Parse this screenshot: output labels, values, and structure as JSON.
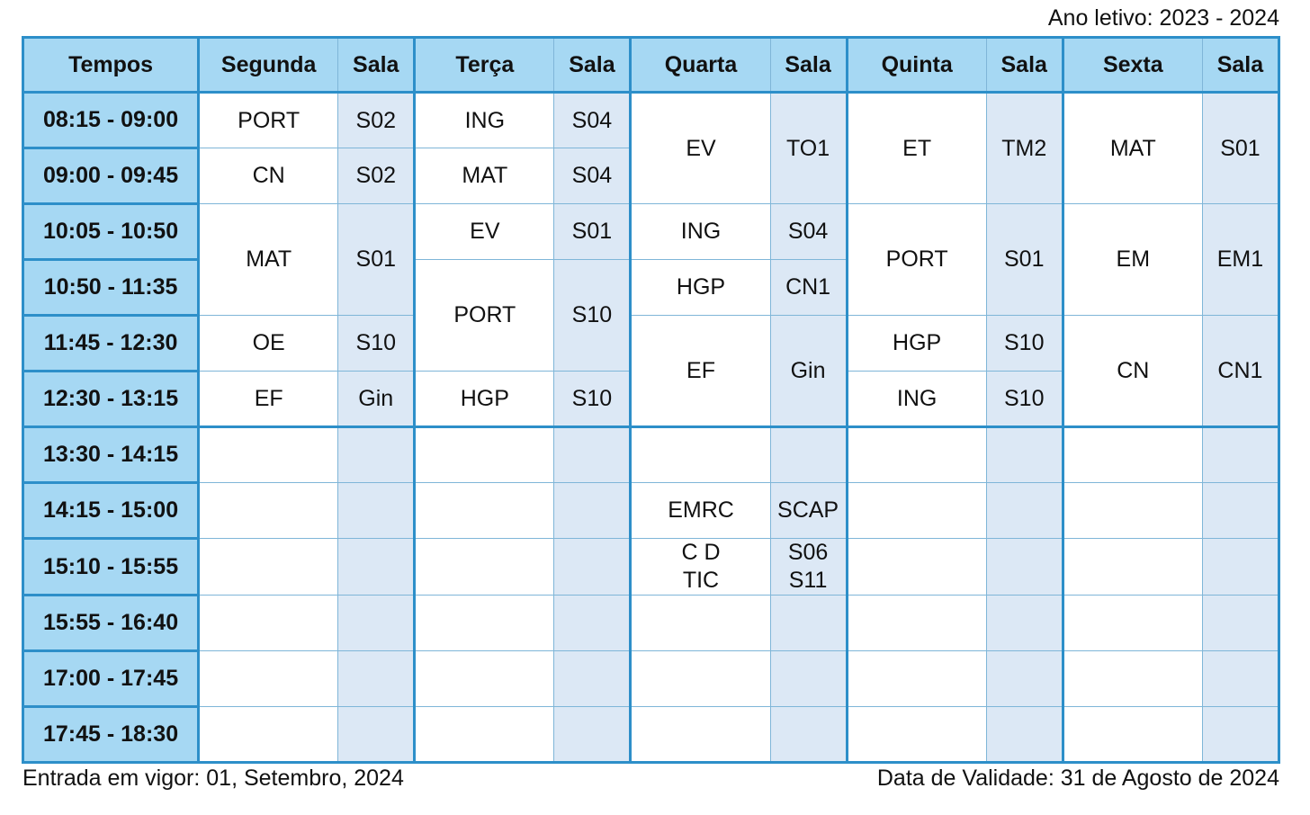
{
  "header_note": "Ano letivo: 2023 - 2024",
  "footer": {
    "left": "Entrada em vigor: 01, Setembro, 2024",
    "right": "Data de Validade: 31 de Agosto de 2024"
  },
  "columns": {
    "tempos": "Tempos",
    "seg": "Segunda",
    "ter": "Terça",
    "qua": "Quarta",
    "qui": "Quinta",
    "sex": "Sexta",
    "sala": "Sala"
  },
  "times": [
    "08:15 - 09:00",
    "09:00 - 09:45",
    "10:05 - 10:50",
    "10:50 - 11:35",
    "11:45 - 12:30",
    "12:30 - 13:15",
    "13:30 - 14:15",
    "14:15 - 15:00",
    "15:10 - 15:55",
    "15:55 - 16:40",
    "17:00 - 17:45",
    "17:45 - 18:30"
  ],
  "seg": [
    {
      "subj": "PORT",
      "room": "S02"
    },
    {
      "subj": "CN",
      "room": "S02"
    },
    {
      "subj": "MAT",
      "room": "S01"
    },
    {
      "subj": "OE",
      "room": "S10"
    },
    {
      "subj": "EF",
      "room": "Gin"
    }
  ],
  "ter": [
    {
      "subj": "ING",
      "room": "S04"
    },
    {
      "subj": "MAT",
      "room": "S04"
    },
    {
      "subj": "EV",
      "room": "S01"
    },
    {
      "subj": "PORT",
      "room": "S10"
    },
    {
      "subj": "HGP",
      "room": "S10"
    }
  ],
  "qua": [
    {
      "subj": "EV",
      "room": "TO1"
    },
    {
      "subj": "ING",
      "room": "S04"
    },
    {
      "subj": "HGP",
      "room": "CN1"
    },
    {
      "subj": "EF",
      "room": "Gin"
    },
    {
      "subj": "EMRC",
      "room": "SCAP"
    },
    {
      "subj_a": "C D",
      "subj_b": "TIC",
      "room_a": "S06",
      "room_b": "S11"
    }
  ],
  "qui": [
    {
      "subj": "ET",
      "room": "TM2"
    },
    {
      "subj": "PORT",
      "room": "S01"
    },
    {
      "subj": "HGP",
      "room": "S10"
    },
    {
      "subj": "ING",
      "room": "S10"
    }
  ],
  "sex": [
    {
      "subj": "MAT",
      "room": "S01"
    },
    {
      "subj": "EM",
      "room": "EM1"
    },
    {
      "subj": "CN",
      "room": "CN1"
    }
  ]
}
